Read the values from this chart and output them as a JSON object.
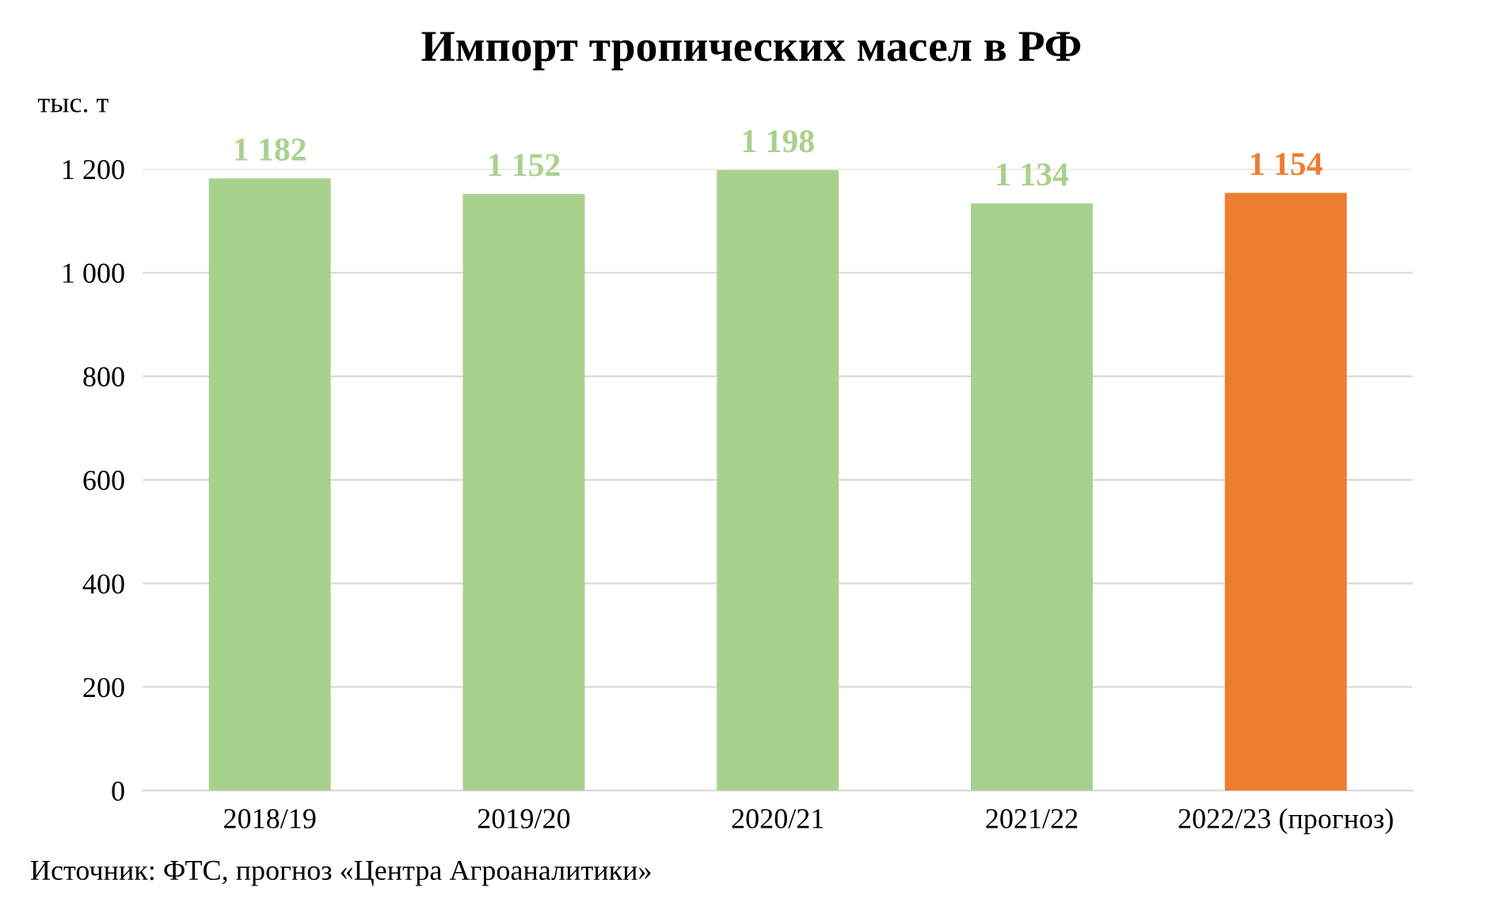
{
  "chart_data": {
    "type": "bar",
    "title": "Импорт тропических масел в РФ",
    "ylabel": "тыс. т",
    "categories": [
      "2018/19",
      "2019/20",
      "2020/21",
      "2021/22",
      "2022/23 (прогноз)"
    ],
    "values": [
      1182,
      1152,
      1198,
      1134,
      1154
    ],
    "colors": [
      "#a9d18e",
      "#a9d18e",
      "#a9d18e",
      "#a9d18e",
      "#ed7d31"
    ],
    "value_labels": [
      "1 182",
      "1 152",
      "1 198",
      "1 134",
      "1 154"
    ],
    "ylim": [
      0,
      1200
    ],
    "yticks": [
      0,
      200,
      400,
      600,
      800,
      {
        "value": 1000,
        "label": "1 000"
      },
      {
        "value": 1200,
        "label": "1 200"
      }
    ],
    "grid": "y",
    "legend": false,
    "annotations": [
      "Источник: ФТС, прогноз «Центра Агроаналитики»"
    ]
  }
}
